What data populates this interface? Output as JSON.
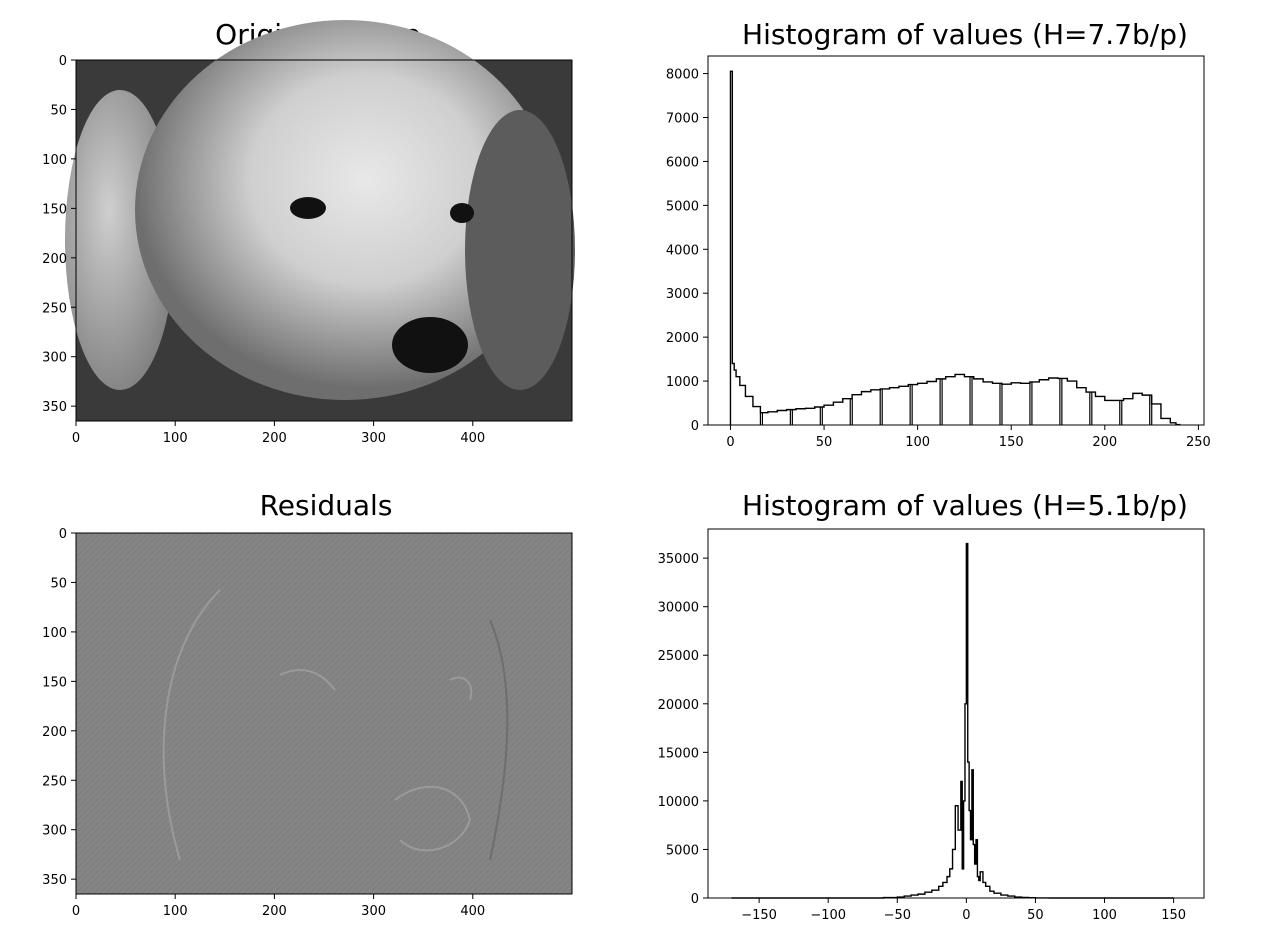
{
  "figure": {
    "panels": [
      {
        "title": "Original image"
      },
      {
        "title": "Histogram of values (H=7.7b/p)"
      },
      {
        "title": "Residuals"
      },
      {
        "title": "Histogram of values (H=5.1b/p)"
      }
    ]
  },
  "colors": {
    "background": "#ffffff",
    "axes": "#000000",
    "histogram_line": "#000000",
    "residual_gray": "#808080"
  },
  "chart_data": [
    {
      "type": "image",
      "title": "Original image",
      "description_of_content": "grayscale photo",
      "xticks": [
        0,
        100,
        200,
        300,
        400
      ],
      "yticks": [
        0,
        50,
        100,
        150,
        200,
        250,
        300,
        350
      ],
      "xlim": [
        0,
        500
      ],
      "ylim": [
        0,
        365
      ]
    },
    {
      "type": "histogram",
      "title": "Histogram of values (H=7.7b/p)",
      "xticks": [
        0,
        50,
        100,
        150,
        200,
        250
      ],
      "yticks": [
        0,
        1000,
        2000,
        3000,
        4000,
        5000,
        6000,
        7000,
        8000
      ],
      "xlim": [
        -12,
        253
      ],
      "ylim": [
        0,
        8400
      ],
      "x": [
        0,
        1,
        2,
        3,
        5,
        8,
        12,
        16,
        20,
        25,
        30,
        35,
        40,
        45,
        50,
        55,
        60,
        65,
        70,
        75,
        80,
        85,
        90,
        95,
        100,
        105,
        110,
        115,
        120,
        125,
        130,
        135,
        140,
        145,
        150,
        155,
        160,
        165,
        170,
        175,
        180,
        185,
        190,
        195,
        200,
        205,
        210,
        215,
        220,
        225,
        230,
        235,
        238,
        240
      ],
      "y": [
        8050,
        1400,
        1250,
        1100,
        900,
        650,
        420,
        280,
        300,
        330,
        350,
        370,
        380,
        410,
        450,
        520,
        600,
        690,
        760,
        800,
        820,
        850,
        880,
        920,
        950,
        990,
        1050,
        1100,
        1150,
        1100,
        1050,
        980,
        950,
        930,
        960,
        950,
        980,
        1030,
        1070,
        1060,
        1000,
        850,
        750,
        650,
        560,
        560,
        600,
        720,
        680,
        480,
        150,
        50,
        10,
        0
      ],
      "gaps_at": [
        16,
        32,
        48,
        64,
        80,
        96,
        112,
        128,
        144,
        160,
        176,
        192,
        208,
        224
      ]
    },
    {
      "type": "image",
      "title": "Residuals",
      "description_of_content": "gray relief-like residual image",
      "xticks": [
        0,
        100,
        200,
        300,
        400
      ],
      "yticks": [
        0,
        50,
        100,
        150,
        200,
        250,
        300,
        350
      ],
      "xlim": [
        0,
        500
      ],
      "ylim": [
        0,
        365
      ]
    },
    {
      "type": "histogram",
      "title": "Histogram of values (H=5.1b/p)",
      "xticks": [
        -150,
        -100,
        -50,
        0,
        50,
        100,
        150
      ],
      "xtick_labels": [
        "−150",
        "−100",
        "−50",
        "0",
        "50",
        "100",
        "150"
      ],
      "yticks": [
        0,
        5000,
        10000,
        15000,
        20000,
        25000,
        30000,
        35000
      ],
      "xlim": [
        -187,
        172
      ],
      "ylim": [
        0,
        38000
      ],
      "x": [
        -170,
        -100,
        -60,
        -50,
        -45,
        -40,
        -35,
        -30,
        -25,
        -20,
        -17,
        -14,
        -12,
        -10,
        -8,
        -6,
        -4,
        -3,
        -2,
        -1,
        0,
        1,
        2,
        3,
        4,
        5,
        6,
        7,
        8,
        9,
        10,
        12,
        14,
        17,
        20,
        25,
        30,
        35,
        40,
        45,
        50,
        60,
        100,
        150
      ],
      "y": [
        0,
        0,
        50,
        100,
        200,
        300,
        400,
        600,
        800,
        1200,
        1600,
        2200,
        3000,
        5000,
        9500,
        7000,
        12000,
        3000,
        10000,
        20000,
        36500,
        14000,
        9000,
        6000,
        13200,
        5500,
        3500,
        6000,
        2200,
        1800,
        2700,
        1600,
        1200,
        700,
        500,
        300,
        200,
        100,
        60,
        30,
        10,
        0,
        0,
        0
      ]
    }
  ]
}
